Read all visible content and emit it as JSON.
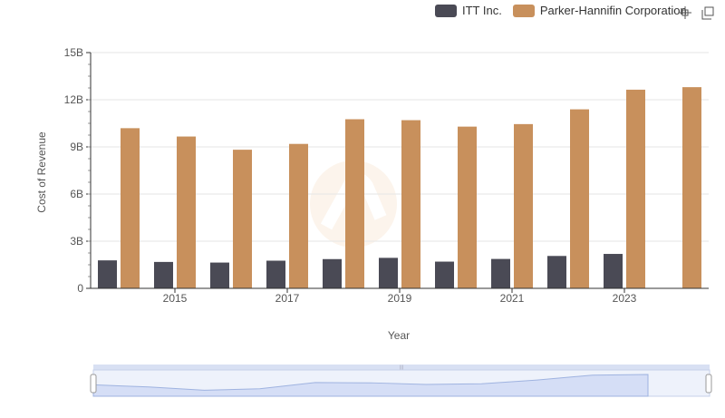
{
  "legend": {
    "items": [
      {
        "label": "ITT Inc.",
        "color": "#4a4a55"
      },
      {
        "label": "Parker-Hannifin Corporation",
        "color": "#c8905c"
      }
    ]
  },
  "toolbar": {
    "icons": [
      "crosshair-icon",
      "restore-icon"
    ]
  },
  "chart_data": {
    "type": "bar",
    "xlabel": "Year",
    "ylabel": "Cost of Revenue",
    "ylim": [
      0,
      15000000000
    ],
    "y_ticks": [
      "0",
      "3B",
      "6B",
      "9B",
      "12B",
      "15B"
    ],
    "x_tick_labels": [
      "2015",
      "2017",
      "2019",
      "2021",
      "2023"
    ],
    "categories": [
      "2014",
      "2015",
      "2016",
      "2017",
      "2018",
      "2019",
      "2020",
      "2021",
      "2022",
      "2023",
      "2024"
    ],
    "series": [
      {
        "name": "ITT Inc.",
        "color": "#4a4a55",
        "values": [
          1780000000,
          1680000000,
          1640000000,
          1760000000,
          1860000000,
          1940000000,
          1700000000,
          1870000000,
          2060000000,
          2190000000,
          null
        ]
      },
      {
        "name": "Parker-Hannifin Corporation",
        "color": "#c8905c",
        "values": [
          10190000000,
          9660000000,
          8820000000,
          9190000000,
          10760000000,
          10700000000,
          10290000000,
          10450000000,
          11390000000,
          12640000000,
          12800000000
        ]
      }
    ],
    "grid": true,
    "legend_position": "top-right"
  }
}
